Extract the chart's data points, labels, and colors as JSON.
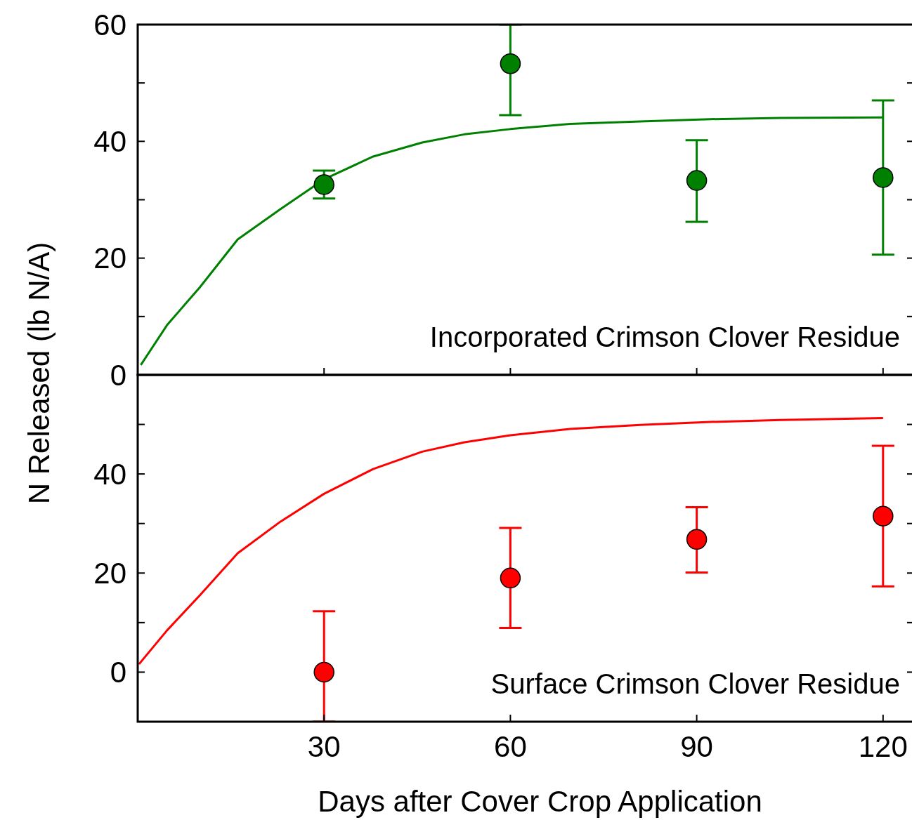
{
  "chart_data": [
    {
      "type": "scatter",
      "ylabel": "N Released (lb N/A)",
      "annotations": [
        "Incorporated Crimson Clover Residue"
      ],
      "xlim": [
        0,
        125
      ],
      "xticks": [
        30,
        60,
        90,
        120
      ],
      "ylim": [
        0,
        60
      ],
      "yticks": [
        0,
        20,
        40,
        60,
        {
          "value": 10,
          "label": null
        },
        {
          "value": 30,
          "label": null
        },
        {
          "value": 50,
          "label": null
        }
      ],
      "tick_labels": "y",
      "grid": false,
      "series": [
        {
          "marker": "circle",
          "color": "#008000",
          "x": [
            30,
            60,
            90,
            120
          ],
          "values": [
            32.6,
            53.3,
            33.3,
            33.8
          ],
          "errors": [
            [
              30.2,
              35.0
            ],
            [
              44.5,
              60
            ],
            [
              26.2,
              40.2
            ],
            [
              20.6,
              47.0
            ]
          ]
        },
        {
          "type": "line",
          "color": "#008000",
          "x": [
            0.5,
            4.7,
            10,
            16.1,
            23,
            30,
            37.9,
            45.8,
            52.6,
            60,
            69.6,
            80.9,
            92.2,
            103.5,
            120
          ],
          "values": [
            1.7,
            8.5,
            15,
            23.2,
            28.4,
            33.5,
            37.4,
            39.8,
            41.2,
            42.1,
            43.0,
            43.4,
            43.8,
            44.0,
            44.1
          ]
        }
      ]
    },
    {
      "type": "scatter",
      "xlabel": "Days after Cover Crop Application",
      "annotations": [
        "Surface Crimson Clover Residue"
      ],
      "xlim": [
        0,
        125
      ],
      "xticks": [
        30,
        60,
        90,
        120
      ],
      "ylim": [
        -10,
        60
      ],
      "yticks": [
        0,
        20,
        40,
        {
          "value": 10,
          "label": null
        },
        {
          "value": 30,
          "label": null
        },
        {
          "value": 50,
          "label": null
        }
      ],
      "grid": false,
      "series": [
        {
          "marker": "circle",
          "color": "#ff0000",
          "x": [
            30,
            60,
            90,
            120
          ],
          "values": [
            0,
            19.0,
            26.8,
            31.5
          ],
          "errors": [
            [
              -10,
              12.3
            ],
            [
              8.9,
              29.1
            ],
            [
              20.1,
              33.3
            ],
            [
              17.3,
              45.7
            ]
          ]
        },
        {
          "type": "line",
          "color": "#ff0000",
          "x": [
            0.2,
            4.7,
            10,
            16.1,
            23,
            30,
            37.9,
            45.8,
            52.6,
            60,
            69.6,
            80.9,
            92.2,
            103.5,
            120
          ],
          "values": [
            1.6,
            8.4,
            15.5,
            24,
            30.4,
            36,
            41,
            44.5,
            46.4,
            47.8,
            49.1,
            49.9,
            50.5,
            50.9,
            51.3
          ]
        }
      ]
    }
  ]
}
